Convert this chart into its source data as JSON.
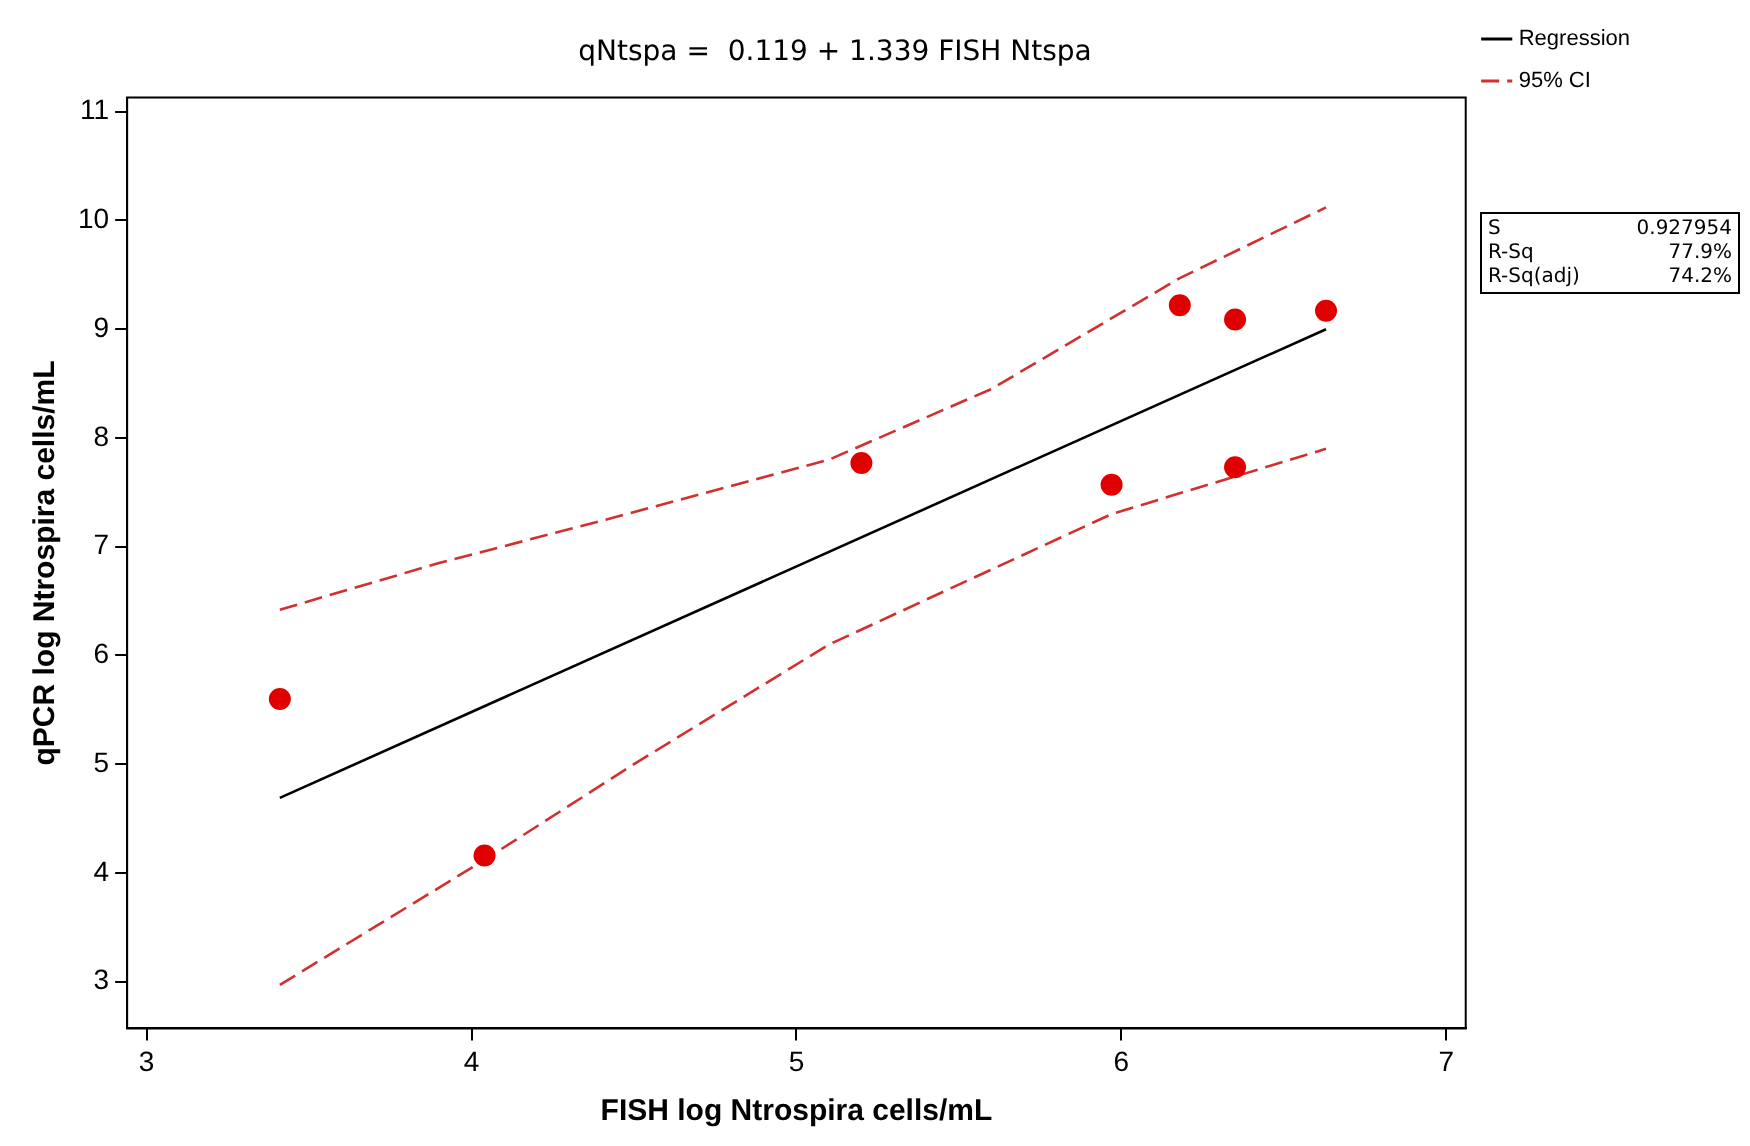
{
  "chart_data": {
    "type": "scatter",
    "title": "qNtspa =  0.119 + 1.339 FISH Ntspa",
    "xlabel": "FISH log Ntrospira cells/mL",
    "ylabel": "qPCR log Ntrospira cells/mL",
    "xlim": [
      2.94,
      7.06
    ],
    "xticks": [
      3,
      4,
      5,
      6,
      7
    ],
    "ylim": [
      2.57,
      11.13
    ],
    "yticks": [
      3,
      4,
      5,
      6,
      7,
      8,
      9,
      10,
      11
    ],
    "grid": false,
    "legend": "top right",
    "marker": "circle",
    "series": [
      {
        "color": "#e00000",
        "x": [
          3.41,
          4.04,
          5.2,
          5.97,
          6.18,
          6.35,
          6.35,
          6.63
        ],
        "values": [
          5.6,
          4.16,
          7.77,
          7.57,
          9.22,
          9.09,
          7.73,
          9.17
        ]
      },
      {
        "type": "line",
        "name": "Regression",
        "color": "#000000",
        "line_style": "solid",
        "marker": "none",
        "x": [
          3.41,
          6.63
        ],
        "values": [
          4.69,
          9.0
        ]
      },
      {
        "type": "line",
        "name": "95% CI",
        "color": "#d03030",
        "line_style": "dashed",
        "marker": "none",
        "x": [
          3.41,
          3.9,
          4.39,
          5.1,
          5.6,
          6.18,
          6.63
        ],
        "values": [
          6.42,
          6.85,
          7.23,
          7.8,
          8.45,
          9.47,
          10.12
        ]
      },
      {
        "type": "line",
        "color": "#d03030",
        "line_style": "dashed",
        "marker": "none",
        "x": [
          3.41,
          4.04,
          4.5,
          5.1,
          5.97,
          6.63
        ],
        "values": [
          2.97,
          4.12,
          5.0,
          6.1,
          7.3,
          7.9
        ]
      }
    ],
    "annotations": [
      "S",
      "0.927954",
      "R-Sq",
      "77.9%",
      "R-Sq(adj)",
      "74.2%"
    ]
  }
}
